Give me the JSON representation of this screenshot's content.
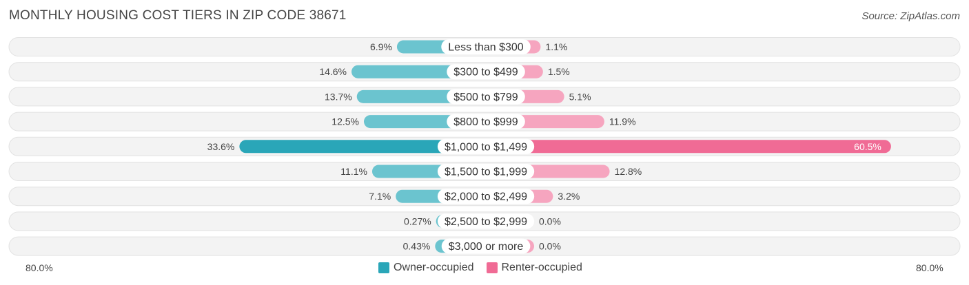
{
  "title": "MONTHLY HOUSING COST TIERS IN ZIP CODE 38671",
  "source": "Source: ZipAtlas.com",
  "colors": {
    "owner": "#6bc4cf",
    "owner_highlight": "#2aa6b8",
    "renter": "#f6a5bf",
    "renter_highlight": "#f06b95"
  },
  "legend": {
    "owner_label": "Owner-occupied",
    "renter_label": "Renter-occupied"
  },
  "axis": {
    "left_label": "80.0%",
    "right_label": "80.0%"
  },
  "chart_data": {
    "type": "bar",
    "orientation": "diverging-horizontal",
    "xlim": [
      -80,
      80
    ],
    "categories": [
      "Less than $300",
      "$300 to $499",
      "$500 to $799",
      "$800 to $999",
      "$1,000 to $1,499",
      "$1,500 to $1,999",
      "$2,000 to $2,499",
      "$2,500 to $2,999",
      "$3,000 or more"
    ],
    "series": [
      {
        "name": "Owner-occupied",
        "values": [
          6.9,
          14.6,
          13.7,
          12.5,
          33.6,
          11.1,
          7.1,
          0.27,
          0.43
        ],
        "labels": [
          "6.9%",
          "14.6%",
          "13.7%",
          "12.5%",
          "33.6%",
          "11.1%",
          "7.1%",
          "0.27%",
          "0.43%"
        ]
      },
      {
        "name": "Renter-occupied",
        "values": [
          1.1,
          1.5,
          5.1,
          11.9,
          60.5,
          12.8,
          3.2,
          0.0,
          0.0
        ],
        "labels": [
          "1.1%",
          "1.5%",
          "5.1%",
          "11.9%",
          "60.5%",
          "12.8%",
          "3.2%",
          "0.0%",
          "0.0%"
        ]
      }
    ],
    "highlight_index": 4,
    "legend_position": "bottom-center"
  }
}
